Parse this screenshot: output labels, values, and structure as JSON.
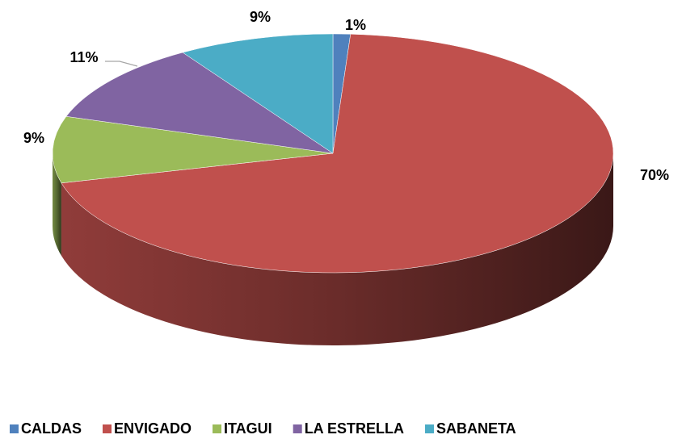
{
  "chart_data": {
    "type": "pie",
    "categories": [
      "CALDAS",
      "ENVIGADO",
      "ITAGUI",
      "LA ESTRELLA",
      "SABANETA"
    ],
    "values": [
      1,
      70,
      9,
      11,
      9
    ],
    "value_labels": [
      "1%",
      "70%",
      "9%",
      "11%",
      "9%"
    ],
    "colors": [
      "#4f81bd",
      "#c0504d",
      "#9bbb59",
      "#8064a2",
      "#4bacc6"
    ],
    "legend": "bottom"
  }
}
